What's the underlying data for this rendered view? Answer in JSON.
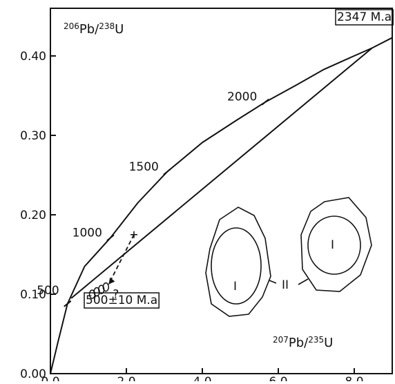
{
  "chart_data": {
    "type": "line",
    "y_label": [
      "206",
      "Pb/",
      "238",
      "U"
    ],
    "x_label": [
      "207",
      "Pb/",
      "235",
      "U"
    ],
    "xlim": [
      0,
      9.0
    ],
    "ylim": [
      0,
      0.46
    ],
    "xticks": [
      {
        "value": 0,
        "label": "0.0"
      },
      {
        "value": 2,
        "label": "2.0"
      },
      {
        "value": 4,
        "label": "4.0"
      },
      {
        "value": 6,
        "label": "6.0"
      },
      {
        "value": 8,
        "label": "8.0"
      }
    ],
    "yticks": [
      {
        "value": 0,
        "label": "0.00"
      },
      {
        "value": 0.1,
        "label": "0.10"
      },
      {
        "value": 0.2,
        "label": "0.20"
      },
      {
        "value": 0.3,
        "label": "0.30"
      },
      {
        "value": 0.4,
        "label": "0.40"
      }
    ],
    "series": [
      {
        "color": "#111111",
        "x": [
          0,
          0.2,
          0.45,
          0.9,
          1.58,
          2.3,
          3.07,
          4.0,
          4.9,
          5.66,
          6.5,
          7.2,
          7.9,
          8.47,
          9.0
        ],
        "y": [
          0,
          0.04,
          0.088,
          0.135,
          0.171,
          0.215,
          0.254,
          0.291,
          0.319,
          0.342,
          0.364,
          0.383,
          0.398,
          0.41,
          0.423
        ]
      },
      {
        "color": "#111111",
        "x": [
          0.55,
          8.47
        ],
        "y": [
          0.095,
          0.41
        ]
      }
    ],
    "age_marks": [
      {
        "label": "500",
        "x": 0.45,
        "y": 0.088
      },
      {
        "label": "1000",
        "x": 1.58,
        "y": 0.171
      },
      {
        "label": "1500",
        "x": 3.07,
        "y": 0.254
      },
      {
        "label": "2000",
        "x": 5.66,
        "y": 0.342
      }
    ],
    "points": {
      "x": [
        1.1,
        1.22,
        1.34,
        1.46
      ],
      "y": [
        0.1,
        0.103,
        0.106,
        0.109
      ]
    },
    "cross": {
      "x": 2.2,
      "y": 0.175
    },
    "upper_intercept": "2347 M.a",
    "lower_intercept": "500±10 M.a",
    "question": "?",
    "grain_labels": [
      "I",
      "II",
      "I"
    ]
  }
}
